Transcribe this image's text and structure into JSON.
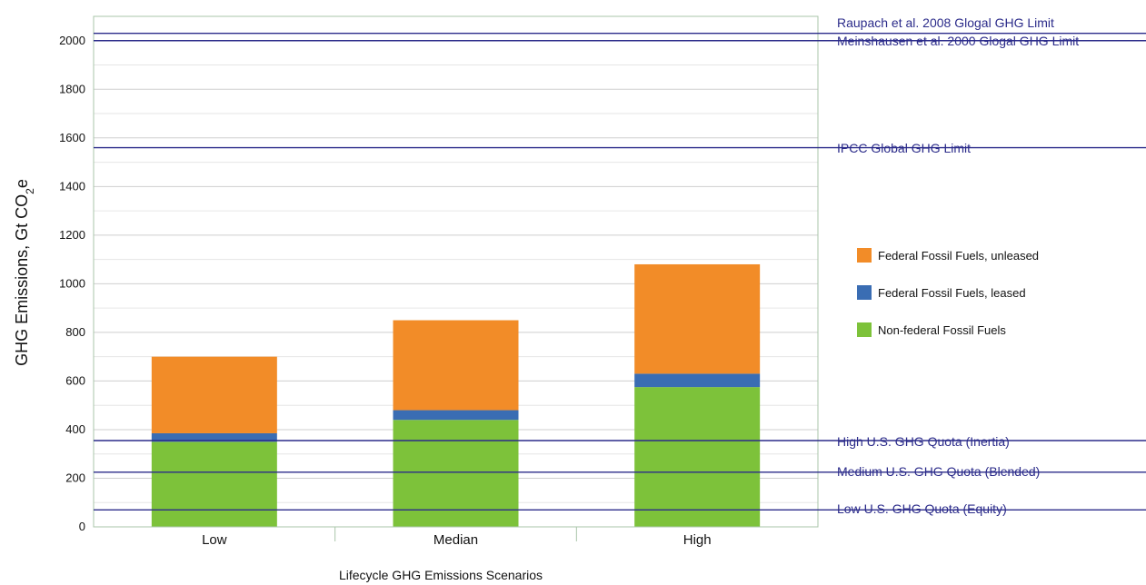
{
  "chart_data": {
    "type": "bar",
    "stacked": true,
    "categories": [
      "Low",
      "Median",
      "High"
    ],
    "series": [
      {
        "name": "Non-federal Fossil Fuels",
        "values": [
          350,
          440,
          575
        ],
        "color": "#7dc23a"
      },
      {
        "name": "Federal Fossil Fuels, leased",
        "values": [
          35,
          40,
          55
        ],
        "color": "#3a6db3"
      },
      {
        "name": "Federal Fossil Fuels, unleased",
        "values": [
          315,
          370,
          450
        ],
        "color": "#f28c28"
      }
    ],
    "ylabel_main": "GHG Emissions, Gt CO",
    "ylabel_sub": "2",
    "ylabel_suffix": "e",
    "xlabel": "Lifecycle GHG Emissions Scenarios",
    "ylim": [
      0,
      2100
    ],
    "yticks": [
      0,
      200,
      400,
      600,
      800,
      1000,
      1200,
      1400,
      1600,
      1800,
      2000
    ],
    "grid": true,
    "legend_position": "right",
    "legend_order": [
      2,
      1,
      0
    ],
    "reference_lines": [
      {
        "label": "Raupach et al. 2008 Glogal GHG Limit",
        "value": 2030
      },
      {
        "label": "Meinshausen et al. 2000 Glogal GHG Limit",
        "value": 2000
      },
      {
        "label": "IPCC Global  GHG Limit",
        "value": 1560
      },
      {
        "label": "High  U.S. GHG Quota (Inertia)",
        "value": 355
      },
      {
        "label": "Medium U.S. GHG Quota (Blended)",
        "value": 225
      },
      {
        "label": "Low  U.S. GHG Quota (Equity)",
        "value": 70
      }
    ],
    "reference_line_color": "#2b2b8a"
  }
}
